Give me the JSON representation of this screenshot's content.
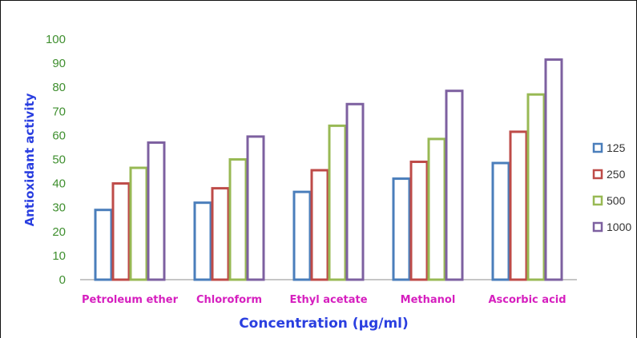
{
  "chart_data": {
    "type": "bar",
    "title": "",
    "xlabel": "Concentration (µg/ml)",
    "ylabel": "Antioxidant activity",
    "ylim": [
      0,
      100
    ],
    "yticks": [
      "0",
      "10",
      "20",
      "30",
      "40",
      "50",
      "60",
      "70",
      "80",
      "90",
      "100"
    ],
    "grid": false,
    "legend_position": "right",
    "categories": [
      "Petroleum ether",
      "Chloroform",
      "Ethyl acetate",
      "Methanol",
      "Ascorbic acid"
    ],
    "series": [
      {
        "name": "125",
        "color": "#4a7ebb",
        "values": [
          29,
          32,
          36.5,
          42,
          48.5
        ]
      },
      {
        "name": "250",
        "color": "#be4b48",
        "values": [
          40,
          38,
          45.5,
          49,
          61.5
        ]
      },
      {
        "name": "500",
        "color": "#98b954",
        "values": [
          46.5,
          50,
          64,
          58.5,
          77
        ]
      },
      {
        "name": "1000",
        "color": "#7d60a0",
        "values": [
          57,
          59.5,
          73,
          78.5,
          91.5
        ]
      }
    ]
  }
}
